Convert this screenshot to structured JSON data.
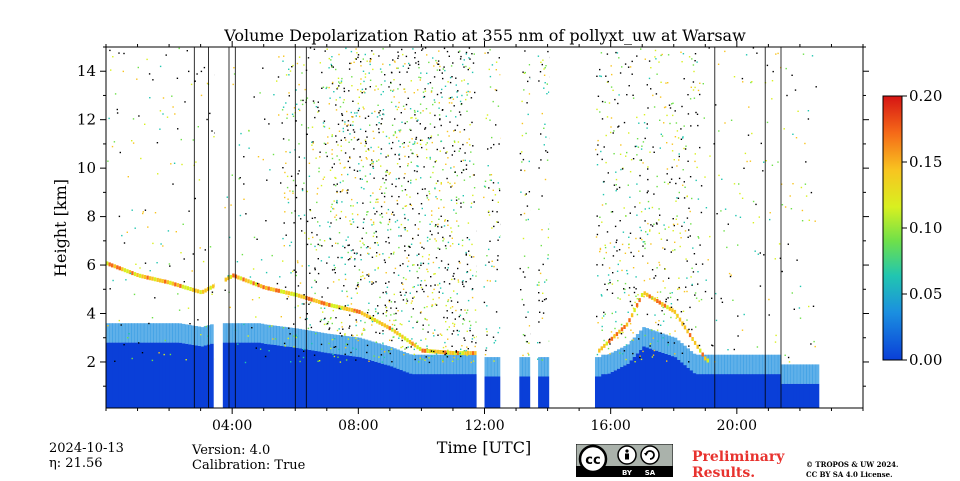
{
  "chart_data": {
    "type": "heatmap",
    "title": "Volume Depolarization Ratio at 355 nm of pollyxt_uw at Warsaw",
    "xlabel": "Time [UTC]",
    "ylabel": "Height [km]",
    "xlim_hours": [
      0,
      24
    ],
    "ylim_km": [
      0.1,
      15
    ],
    "x_ticks": [
      {
        "h": 4,
        "label": "04:00"
      },
      {
        "h": 8,
        "label": "08:00"
      },
      {
        "h": 12,
        "label": "12:00"
      },
      {
        "h": 16,
        "label": "16:00"
      },
      {
        "h": 20,
        "label": "20:00"
      }
    ],
    "y_ticks": [
      {
        "v": 2,
        "label": "2"
      },
      {
        "v": 4,
        "label": "4"
      },
      {
        "v": 6,
        "label": "6"
      },
      {
        "v": 8,
        "label": "8"
      },
      {
        "v": 10,
        "label": "10"
      },
      {
        "v": 12,
        "label": "12"
      },
      {
        "v": 14,
        "label": "14"
      }
    ],
    "colorbar": {
      "range": [
        0.0,
        0.2
      ],
      "ticks": [
        {
          "v": 0.0,
          "label": "0.00"
        },
        {
          "v": 0.05,
          "label": "0.05"
        },
        {
          "v": 0.1,
          "label": "0.10"
        },
        {
          "v": 0.15,
          "label": "0.15"
        },
        {
          "v": 0.2,
          "label": "0.20"
        }
      ],
      "colormap": [
        "#0a3fd8",
        "#1b8fe0",
        "#21c6b0",
        "#6ee04a",
        "#d8f020",
        "#f8c420",
        "#f56a18",
        "#d61414"
      ]
    },
    "no_data_gaps_hours": [
      [
        3.45,
        3.7
      ],
      [
        11.75,
        11.95
      ],
      [
        12.5,
        13.1
      ],
      [
        13.45,
        13.65
      ],
      [
        14.05,
        15.5
      ]
    ],
    "vertical_lines_hours": [
      2.8,
      3.25,
      3.9,
      4.1,
      6.0,
      6.35,
      19.3,
      20.9,
      21.4
    ],
    "aerosol_layer_top_km": [
      [
        0,
        6.0
      ],
      [
        1,
        5.5
      ],
      [
        2,
        5.2
      ],
      [
        3,
        4.8
      ],
      [
        4,
        5.5
      ],
      [
        5,
        5.0
      ],
      [
        6,
        4.7
      ],
      [
        7,
        4.3
      ],
      [
        8,
        4.0
      ],
      [
        9,
        3.3
      ],
      [
        10,
        2.4
      ],
      [
        11,
        2.3
      ],
      [
        11.7,
        2.3
      ],
      [
        15.6,
        2.4
      ],
      [
        16.5,
        3.5
      ],
      [
        17,
        4.8
      ],
      [
        18,
        4.0
      ],
      [
        19,
        2.0
      ],
      [
        21.2,
        1.6
      ]
    ]
  },
  "footer": {
    "date": "2024-10-13",
    "eta": "η: 21.56",
    "version": "Version: 4.0",
    "calibration": "Calibration: True",
    "preliminary_line1": "Preliminary",
    "preliminary_line2": "Results.",
    "license_line1": "© TROPOS & UW 2024.",
    "license_line2": "CC BY SA 4.0 License.",
    "cc_badge_text": [
      "cc",
      "BY",
      "SA"
    ]
  }
}
